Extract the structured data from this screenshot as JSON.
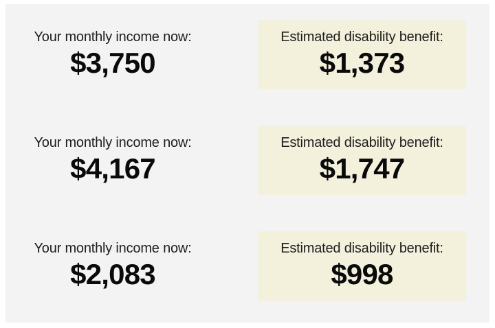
{
  "theme": {
    "page_background": "#ffffff",
    "panel_background": "#f4f3f4",
    "benefit_box_background": "#f3f0dc",
    "label_color": "#1e1e1e",
    "value_color": "#0a0a0a"
  },
  "rows": [
    {
      "income_label": "Your monthly income now:",
      "income_value": "$3,750",
      "benefit_label": "Estimated disability benefit:",
      "benefit_value": "$1,373"
    },
    {
      "income_label": "Your monthly income now:",
      "income_value": "$4,167",
      "benefit_label": "Estimated disability benefit:",
      "benefit_value": "$1,747"
    },
    {
      "income_label": "Your monthly income now:",
      "income_value": "$2,083",
      "benefit_label": "Estimated disability benefit:",
      "benefit_value": "$998"
    }
  ],
  "chart_data": {
    "type": "table",
    "columns": [
      "Your monthly income now:",
      "Estimated disability benefit:"
    ],
    "rows": [
      [
        "$3,750",
        "$1,373"
      ],
      [
        "$4,167",
        "$1,747"
      ],
      [
        "$2,083",
        "$998"
      ]
    ],
    "income_values": [
      3750,
      4167,
      2083
    ],
    "benefit_values": [
      1373,
      1747,
      998
    ],
    "title": "",
    "notes": "Three example scenarios pairing current monthly income with estimated disability benefit; benefit values highlighted in cream boxes"
  }
}
